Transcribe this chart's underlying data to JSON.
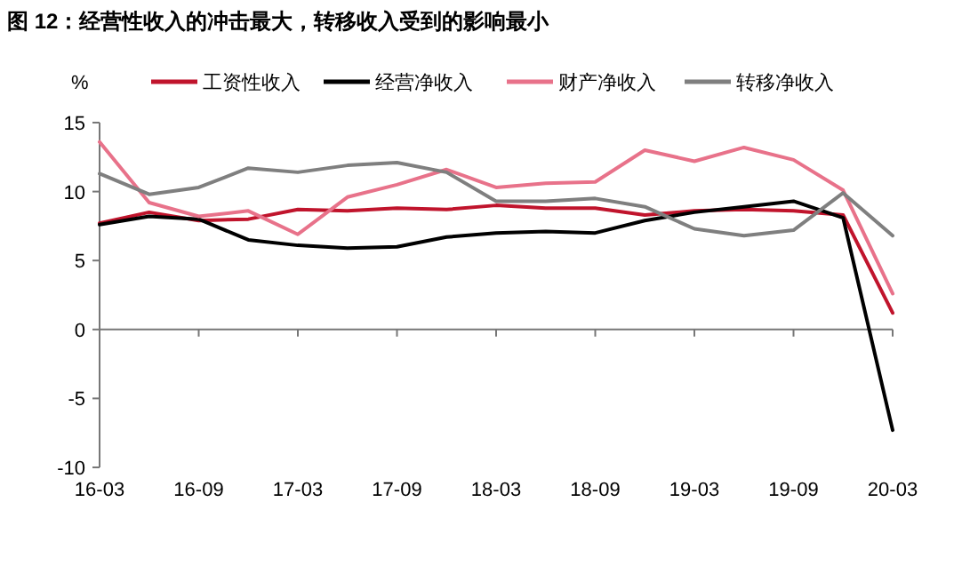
{
  "chart_data": {
    "type": "line",
    "title": "图 12：经营性收入的冲击最大，转移收入受到的影响最小",
    "ylabel": "%",
    "categories": [
      "16-03",
      null,
      "16-09",
      null,
      "17-03",
      null,
      "17-09",
      null,
      "18-03",
      null,
      "18-09",
      null,
      "19-03",
      null,
      "19-09",
      null,
      "20-03"
    ],
    "series": [
      {
        "name": "工资性收入",
        "color": "#c0142c",
        "values": [
          7.7,
          8.5,
          7.9,
          8.0,
          8.7,
          8.6,
          8.8,
          8.7,
          9.0,
          8.8,
          8.8,
          8.3,
          8.6,
          8.7,
          8.6,
          8.3,
          1.2
        ]
      },
      {
        "name": "经营净收入",
        "color": "#000000",
        "values": [
          7.6,
          8.2,
          8.0,
          6.5,
          6.1,
          5.9,
          6.0,
          6.7,
          7.0,
          7.1,
          7.0,
          7.9,
          8.5,
          8.9,
          9.3,
          8.1,
          -7.3
        ]
      },
      {
        "name": "财产净收入",
        "color": "#e8728a",
        "values": [
          13.6,
          9.2,
          8.2,
          8.6,
          6.9,
          9.6,
          10.5,
          11.6,
          10.3,
          10.6,
          10.7,
          13.0,
          12.2,
          13.2,
          12.3,
          10.1,
          2.6
        ]
      },
      {
        "name": "转移净收入",
        "color": "#7f7f7f",
        "values": [
          11.3,
          9.8,
          10.3,
          11.7,
          11.4,
          11.9,
          12.1,
          11.4,
          9.3,
          9.3,
          9.5,
          8.9,
          7.3,
          6.8,
          7.2,
          9.9,
          6.8
        ]
      }
    ],
    "ylim": [
      -10,
      15
    ],
    "yticks": [
      -10,
      -5,
      0,
      5,
      10,
      15
    ],
    "legend": "top",
    "marker": "none",
    "line_style": "solid"
  }
}
